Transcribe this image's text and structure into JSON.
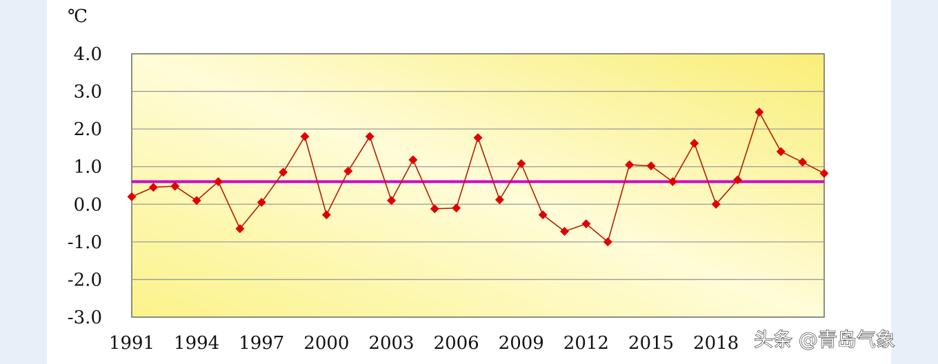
{
  "chart_data": {
    "type": "line",
    "unit_label": "℃",
    "x": [
      1991,
      1992,
      1993,
      1994,
      1995,
      1996,
      1997,
      1998,
      1999,
      2000,
      2001,
      2002,
      2003,
      2004,
      2005,
      2006,
      2007,
      2008,
      2009,
      2010,
      2011,
      2012,
      2013,
      2014,
      2015,
      2016,
      2017,
      2018,
      2019,
      2020,
      2021,
      2022,
      2023
    ],
    "series": [
      {
        "values": [
          0.2,
          0.45,
          0.48,
          0.1,
          0.6,
          -0.65,
          0.05,
          0.85,
          1.8,
          -0.28,
          0.88,
          1.8,
          0.1,
          1.18,
          -0.12,
          -0.1,
          1.77,
          0.12,
          1.08,
          -0.28,
          -0.72,
          -0.52,
          -1.0,
          1.05,
          1.02,
          0.6,
          1.62,
          0.0,
          0.65,
          2.45,
          1.4,
          1.12,
          0.82
        ],
        "color": "#e00000"
      }
    ],
    "reference_line": {
      "value": 0.6,
      "color": "#cc00cc"
    },
    "xticks": [
      "1991",
      "1994",
      "1997",
      "2000",
      "2003",
      "2006",
      "2009",
      "2012",
      "2015",
      "2018"
    ],
    "yticks": [
      "4.0",
      "3.0",
      "2.0",
      "1.0",
      "0.0",
      "-1.0",
      "-2.0",
      "-3.0"
    ],
    "ytick_values": [
      4,
      3,
      2,
      1,
      0,
      -1,
      -2,
      -3
    ],
    "ylim": [
      -3,
      4
    ],
    "grid": true
  },
  "watermark": "头条 @青岛气象"
}
